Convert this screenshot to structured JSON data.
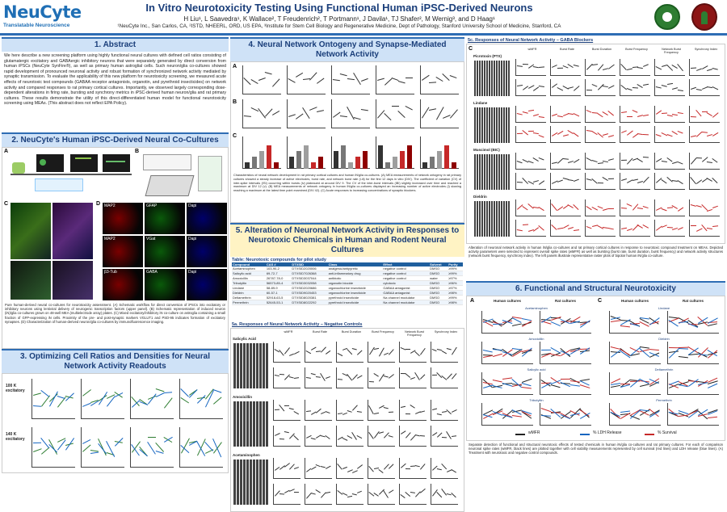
{
  "header": {
    "logo_brand": "NeuCyte",
    "logo_tag": "Translatable Neuroscience",
    "title": "In Vitro Neurotoxicity Testing Using Functional Human iPSC-Derived Neurons",
    "authors": "H Liu¹, L Saavedra¹, K Wallace², T Freudenrich², T Portmann¹, J Davila¹, TJ Shafer², M Wernig³, and D Haag¹",
    "affiliations": "¹NeuCyte Inc., San Carlos, CA, ²ISTD, NHEERL, ORD, US EPA, ³Institute for Stem Cell Biology and Regenerative Medicine, Dept of Pathology, Stanford University School of Medicine, Stanford, CA"
  },
  "sections": {
    "s1_title": "1. Abstract",
    "s1_text": "We here describe a new screening platform using highly functional neural cultures with defined cell ratios consisting of glutamatergic excitatory and GABAergic inhibitory neurons that were separately generated by direct conversion from human iPSCs (NeuCyte SynFire®), as well as primary human astroglial cells. Such neuron/glia co-cultures showed rapid development of pronounced neuronal activity and robust formation of synchronized network activity mediated by synaptic transmission. To evaluate the applicability of this new platform for neurotoxicity screening, we measured acute effects of neurotoxic test compounds (GABAA receptor antagonists, organotin, and pyrethroid insecticides) on network activity and compared responses to rat primary cortical cultures. Importantly, we observed largely corresponding dose-dependent alterations in firing rate, bursting and synchrony metrics in iPSC-derived human neuron/glia and rat primary cultures. These results demonstrate the utility of this direct-differentiated human model for functional neurotoxicity screening using MEAs. (This abstract does not reflect EPA Policy).",
    "s2_title": "2. NeuCyte's Human iPSC-Derived Neural Co-Cultures",
    "s2_caption": "Pure human-derived neural co-cultures for neurotoxicity assessment. (A) Schematic workflow for direct conversion of iPSCs into excitatory or inhibitory neurons using lentiviral delivery of neurogenic transcription factors (upper panel). (B) Schematic representation of induced neuron (iN)/glia co-cultures grown on 48-well MEA (multielectrode array) plates. (C) Mixed excitatory/inhibitory iN co-culture on astroglia containing a small fraction of GFP-expressing iN cells. Proximity of the pre- and post-synaptic markers VGLUT1 and PSD-95 indicates formation of excitatory synapses. (D) Characterization of human-derived neuron/glia co-cultures by immunofluorescence imaging.",
    "s3_title": "3. Optimizing Cell Ratios and Densities for Neural Network Activity Readouts",
    "s4_title": "4. Neural Network Ontogeny and Synapse-Mediated Network Activity",
    "s4_caption": "Characteristics of neural network development in rat primary cortical cultures and human iN/glia co-cultures. (A) MEA measurements of network ontogeny in rat primary cultures showed a steady increase of active electrodes, burst rate, and network burst rate (i-iii) for the first 12 days in vitro (DIV). The coefficient of variation (CV) of inter-spike intervals (ISI) occurring within bursts (iv) plateaued at around DIV 9. The CV of the inter-burst intervals (IBI) slightly increased over time and reached a maximum at DIV 12 (v). (B) MEA measurements of network ontogeny in human iN/glia co-cultures displayed an increasing number of active electrodes (i) slowing reaching a maximum at the latest time point examined (DIV 42). (C) Acute responses to increasing concentrations of synaptic blockers.",
    "s5_title": "5. Alteration of Neuronal Network Activity in Responses to Neurotoxic Chemicals in Human and Rodent Neural Cultures",
    "s5_table_title": "Table: Neurotoxic compounds for pilot study",
    "s5a_title": "5a. Responses of Neural Network Activity – Negative Controls",
    "s5c_title": "5c. Responses of Neural Network Activity – GABA Blockers",
    "s5c_caption": "Alteration of neuronal network activity in human iN/glia co-cultures and rat primary cortical cultures in response to neurotoxic compound treatment on MEAs. Depicted activity parameters were selected to represent overall spike rates (wMFR) as well as bursting (burst rate, burst duration, burst frequency) and network activity structures (network burst frequency, synchrony index). The left panels illustrate representative raster plots of bipolar human iN/glia co-culture.",
    "s6_title": "6. Functional and Structural Neurotoxicity",
    "s6_caption": "Separate detection of functional and structural neurotoxic effects of tested chemicals in human iN/glia co-cultures and rat primary cultures. For each of comparison neuronal spike rates (wMFR, black lines) are plotted together with cell viability measurements represented by cell survival (red lines) and LDH release (blue lines). (A) Treatment with neurotoxic and negative control compounds."
  },
  "table": {
    "headers": [
      "Compound",
      "CAS #",
      "DTXSID",
      "Class",
      "Effect",
      "Solvent",
      "Purity"
    ],
    "rows": [
      [
        "Acetaminophen",
        "103-90-2",
        "DTXSID2020006",
        "analgesic/antipyretic",
        "negative control",
        "DMSO",
        "≥99%"
      ],
      [
        "Salicylic acid",
        "69-72-7",
        "DTXSID7026368",
        "anti-inflammatory drug",
        "negative control",
        "DMSO",
        "≥99%"
      ],
      [
        "Amoxicillin",
        "26787-78-0",
        "DTXSID3037044",
        "antibiotic",
        "negative control",
        "water",
        "≥97%"
      ],
      [
        "Tributyltin",
        "56573-85-4",
        "DTXSID3032058",
        "organotin biocide",
        "cytotoxic",
        "DMSO",
        "≥96%"
      ],
      [
        "Lindane",
        "58-89-9",
        "DTXSID2020686",
        "organochlorine insecticide",
        "GABAA antagonist",
        "DMSO",
        "≥97%"
      ],
      [
        "Dieldrin",
        "60-57-1",
        "DTXSID9020453",
        "organochlorine insecticide",
        "GABAA antagonist",
        "DMSO",
        "≥98%"
      ],
      [
        "Deltamethrin",
        "52918-63-5",
        "DTXSID8020381",
        "pyrethroid insecticide",
        "Na channel modulator",
        "DMSO",
        "≥99%"
      ],
      [
        "Permethrin",
        "52645-53-1",
        "DTXSID8022292",
        "pyrethroid insecticide",
        "Na channel modulator",
        "DMSO",
        "≥98%"
      ]
    ]
  },
  "figure_labels": {
    "s2_panels": [
      "A",
      "B",
      "C",
      "D"
    ],
    "stain_labels": [
      "MAP2",
      "GFAP",
      "Dapi",
      "MAP2",
      "VGat",
      "Dapi",
      "β3-Tub",
      "GABA",
      "Dapi"
    ],
    "s4_panels": [
      "A",
      "B",
      "C"
    ],
    "s5c_rows": [
      "Picrotoxin (PTX)",
      "Lindane",
      "Muscimol (BIC)",
      "Dieldrin"
    ],
    "s5c_cols": [
      "wMFR",
      "Burst Rate",
      "Burst Duration",
      "Burst Frequency",
      "Network Burst Frequency",
      "Synchrony Index"
    ],
    "s5a_rows": [
      "Salicylic Acid",
      "Amoxicillin",
      "Acetaminophen"
    ],
    "s5a_cols": [
      "wMFR",
      "Burst Rate",
      "Burst Duration",
      "Burst Frequency",
      "Network Burst Frequency",
      "Synchrony Index"
    ],
    "s3_rows": [
      "100 K excitatory",
      "140 K excitatory"
    ],
    "s6_panels": [
      "A",
      "B",
      "C",
      "D"
    ],
    "s6_compounds": [
      "Acetaminophen",
      "Amoxicillin",
      "Salicylic acid",
      "Tributyltin",
      "Lindane",
      "Dieldrin",
      "Deltamethrin",
      "Permethrin"
    ],
    "s6_col_heads": [
      "Human cultures",
      "Rat cultures",
      "Human cultures",
      "Rat cultures"
    ],
    "s6_legend": [
      "wMFR",
      "% LDH Release",
      "% Survival"
    ]
  },
  "colors": {
    "accent": "#2e6db4",
    "header_band": "#cfe2f7",
    "title_text": "#1a3e7a",
    "table_head": "#1f5f9e"
  }
}
